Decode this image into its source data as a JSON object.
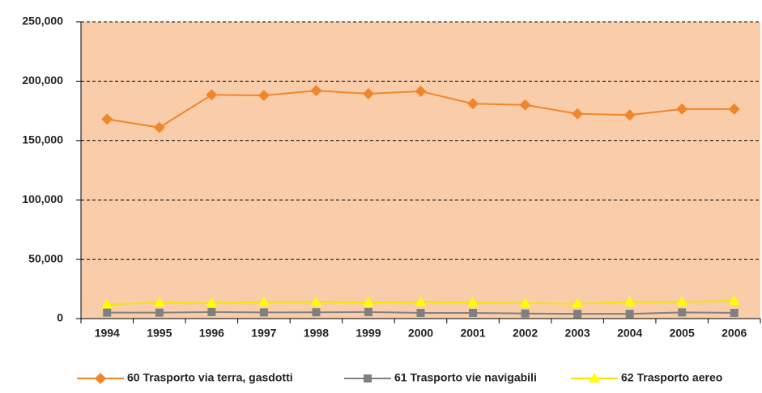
{
  "chart_data": {
    "type": "line",
    "categories": [
      "1994",
      "1995",
      "1996",
      "1997",
      "1998",
      "1999",
      "2000",
      "2001",
      "2002",
      "2003",
      "2004",
      "2005",
      "2006"
    ],
    "series": [
      {
        "name": "60 Trasporto via terra, gasdotti",
        "color": "#f0862a",
        "marker": "diamond",
        "values": [
          168000,
          161000,
          188500,
          188000,
          192000,
          189500,
          191500,
          181000,
          180000,
          172500,
          171500,
          176500,
          176500
        ]
      },
      {
        "name": "61 Trasporto vie navigabili",
        "color": "#808080",
        "marker": "square",
        "values": [
          5000,
          5000,
          5500,
          5200,
          5300,
          5500,
          4800,
          4800,
          4300,
          4000,
          4000,
          5200,
          4800
        ]
      },
      {
        "name": "62 Trasporto aereo",
        "color": "#f2e600",
        "marker": "triangle",
        "values": [
          12000,
          13500,
          13000,
          14000,
          14000,
          13500,
          14000,
          13500,
          13000,
          12500,
          14000,
          14000,
          15000
        ]
      }
    ],
    "ylim": [
      0,
      250000
    ],
    "yticks": [
      0,
      {
        "value": 50000,
        "label": "50,000"
      },
      {
        "value": 100000,
        "label": "100,000"
      },
      {
        "value": 150000,
        "label": "150,000"
      },
      {
        "value": 200000,
        "label": "200,000"
      },
      {
        "value": 250000,
        "label": "250,000"
      }
    ],
    "grid": true,
    "legend": "bottom",
    "background": "#f9cda9"
  }
}
